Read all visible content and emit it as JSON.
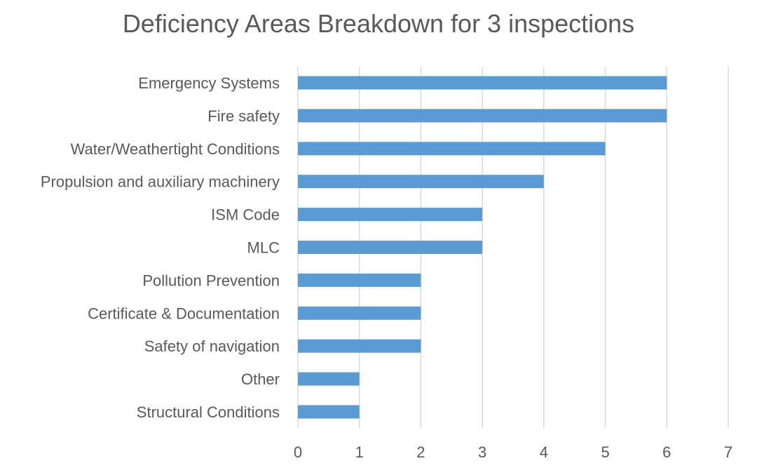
{
  "chart_data": {
    "type": "bar",
    "orientation": "horizontal",
    "title": "Deficiency Areas Breakdown for 3 inspections",
    "categories": [
      "Emergency Systems",
      "Fire safety",
      "Water/Weathertight Conditions",
      "Propulsion and auxiliary machinery",
      "ISM Code",
      "MLC",
      "Pollution Prevention",
      "Certificate & Documentation",
      "Safety of navigation",
      "Other",
      "Structural Conditions"
    ],
    "values": [
      6,
      6,
      5,
      4,
      3,
      3,
      2,
      2,
      2,
      1,
      1
    ],
    "xticks": [
      "0",
      "1",
      "2",
      "3",
      "4",
      "5",
      "6",
      "7"
    ],
    "xlim": [
      0,
      7
    ],
    "grid": "vertical",
    "legend": "none",
    "bar_color": "#5B9BD5",
    "grid_color": "#D9D9D9",
    "text_color": "#595959"
  }
}
